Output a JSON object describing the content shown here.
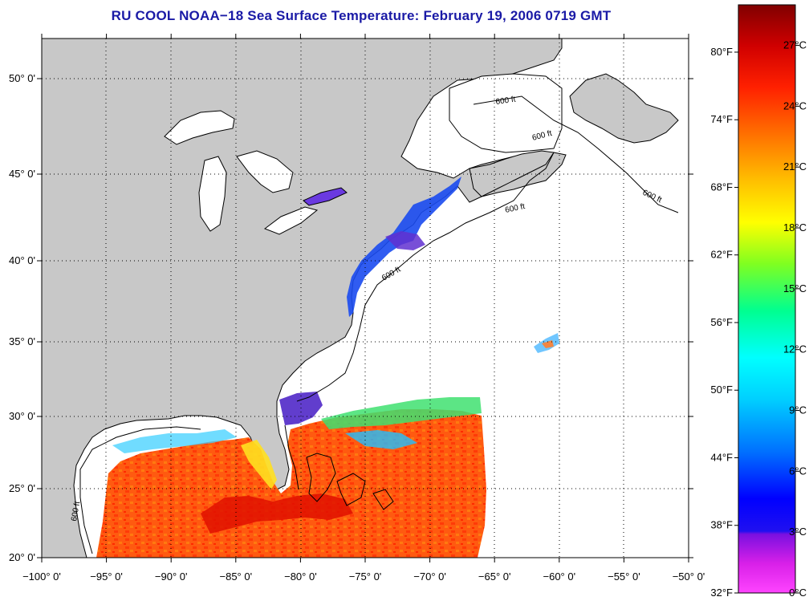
{
  "title": "RU COOL  NOAA−18  Sea Surface Temperature:  February 19, 2006 0719 GMT",
  "map": {
    "lon_range": [
      -100,
      -50
    ],
    "lat_range": [
      20,
      52.5
    ],
    "lat_ticks": [
      {
        "value": 50,
        "label": "50° 0'"
      },
      {
        "value": 45,
        "label": "45° 0'"
      },
      {
        "value": 40,
        "label": "40° 0'"
      },
      {
        "value": 35,
        "label": "35° 0'"
      },
      {
        "value": 30,
        "label": "30° 0'"
      },
      {
        "value": 25,
        "label": "25° 0'"
      },
      {
        "value": 20,
        "label": "20° 0'"
      }
    ],
    "lon_ticks": [
      {
        "value": -100,
        "label": "−100° 0'"
      },
      {
        "value": -95,
        "label": "−95° 0'"
      },
      {
        "value": -90,
        "label": "−90° 0'"
      },
      {
        "value": -85,
        "label": "−85° 0'"
      },
      {
        "value": -80,
        "label": "−80° 0'"
      },
      {
        "value": -75,
        "label": "−75° 0'"
      },
      {
        "value": -70,
        "label": "−70° 0'"
      },
      {
        "value": -65,
        "label": "−65° 0'"
      },
      {
        "value": -60,
        "label": "−60° 0'"
      },
      {
        "value": -55,
        "label": "−55° 0'"
      },
      {
        "value": -50,
        "label": "−50° 0'"
      }
    ],
    "contour_labels": [
      "600 ft",
      "600 ft",
      "600 ft",
      "600 ft",
      "600 ft",
      "600 ft"
    ],
    "colors": {
      "land": "#c8c8c8",
      "cloud_mask": "#ffffff",
      "coast": "#000000"
    }
  },
  "colorbar": {
    "range_c": [
      0,
      29
    ],
    "fahrenheit_ticks": [
      {
        "value": 80,
        "label": "80°F"
      },
      {
        "value": 74,
        "label": "74°F"
      },
      {
        "value": 68,
        "label": "68°F"
      },
      {
        "value": 62,
        "label": "62°F"
      },
      {
        "value": 56,
        "label": "56°F"
      },
      {
        "value": 50,
        "label": "50°F"
      },
      {
        "value": 44,
        "label": "44°F"
      },
      {
        "value": 38,
        "label": "38°F"
      },
      {
        "value": 32,
        "label": "32°F"
      }
    ],
    "celsius_ticks": [
      {
        "value": 27,
        "label": "27°C"
      },
      {
        "value": 24,
        "label": "24°C"
      },
      {
        "value": 21,
        "label": "21°C"
      },
      {
        "value": 18,
        "label": "18°C"
      },
      {
        "value": 15,
        "label": "15°C"
      },
      {
        "value": 12,
        "label": "12°C"
      },
      {
        "value": 9,
        "label": "9°C"
      },
      {
        "value": 6,
        "label": "6°C"
      },
      {
        "value": 3,
        "label": "3°C"
      },
      {
        "value": 0,
        "label": "0°C"
      }
    ],
    "palette": [
      "#ff44ff",
      "#cc00dd",
      "#7010e0",
      "#0000ff",
      "#0060ff",
      "#00c0ff",
      "#00ffff",
      "#00ff90",
      "#80ff00",
      "#ffff00",
      "#ffc000",
      "#ff7000",
      "#ff2000",
      "#d00000",
      "#800000"
    ]
  }
}
